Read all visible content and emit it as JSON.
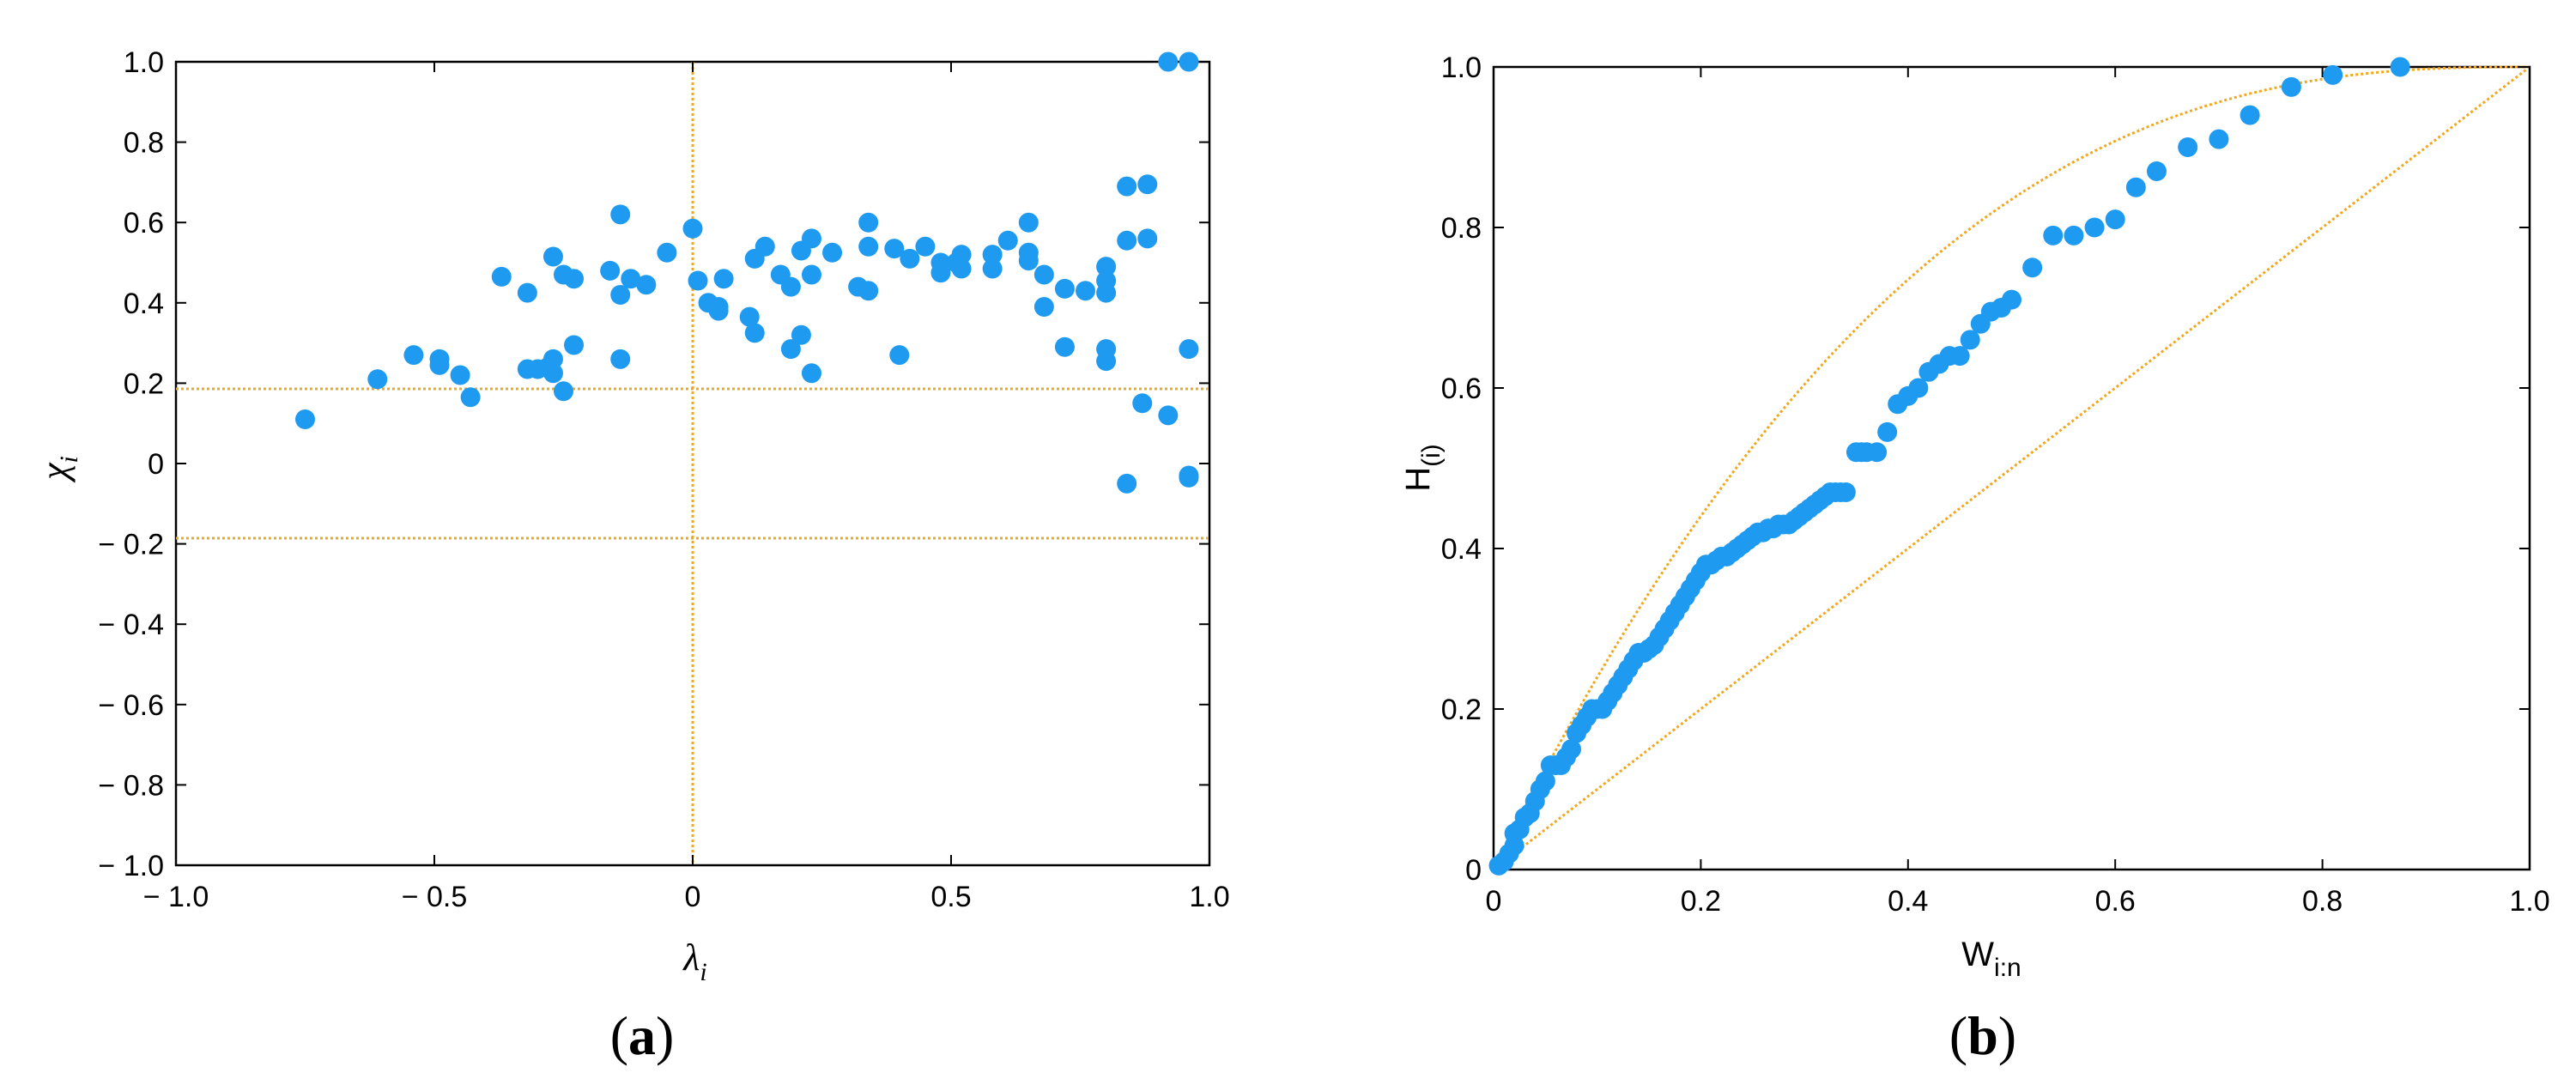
{
  "colors": {
    "points": "#1e9bf0",
    "reference": "#f0a81e",
    "axes": "#000000"
  },
  "chart_data": [
    {
      "type": "scatter",
      "panel_label": "a",
      "xlabel": "λ",
      "xlabel_sub": "i",
      "ylabel": "χ",
      "ylabel_sub": "i",
      "xlim": [
        -1.0,
        1.0
      ],
      "ylim": [
        -1.0,
        1.0
      ],
      "xticks": [
        -1.0,
        -0.5,
        0,
        0.5,
        1.0
      ],
      "xtick_labels": [
        "− 1.0",
        "− 0.5",
        "0",
        "0.5",
        "1.0"
      ],
      "yticks": [
        -1.0,
        -0.8,
        -0.6,
        -0.4,
        -0.2,
        0,
        0.2,
        0.4,
        0.6,
        0.8,
        1.0
      ],
      "ytick_labels": [
        "− 1.0",
        "− 0.8",
        "− 0.6",
        "− 0.4",
        "− 0.2",
        "0",
        "0.2",
        "0.4",
        "0.6",
        "0.8",
        "1.0"
      ],
      "grid": false,
      "reference_lines": {
        "vertical_x": [
          0
        ],
        "horizontal_y": [
          0.186,
          -0.186
        ]
      },
      "points": [
        [
          -0.75,
          0.11
        ],
        [
          -0.61,
          0.21
        ],
        [
          -0.54,
          0.27
        ],
        [
          -0.49,
          0.26
        ],
        [
          -0.49,
          0.245
        ],
        [
          -0.45,
          0.22
        ],
        [
          -0.43,
          0.165
        ],
        [
          -0.37,
          0.465
        ],
        [
          -0.32,
          0.425
        ],
        [
          -0.32,
          0.235
        ],
        [
          -0.3,
          0.235
        ],
        [
          -0.28,
          0.24
        ],
        [
          -0.27,
          0.515
        ],
        [
          -0.27,
          0.26
        ],
        [
          -0.27,
          0.225
        ],
        [
          -0.25,
          0.47
        ],
        [
          -0.25,
          0.18
        ],
        [
          -0.23,
          0.46
        ],
        [
          -0.23,
          0.295
        ],
        [
          -0.16,
          0.48
        ],
        [
          -0.14,
          0.62
        ],
        [
          -0.14,
          0.42
        ],
        [
          -0.14,
          0.26
        ],
        [
          -0.12,
          0.46
        ],
        [
          -0.09,
          0.445
        ],
        [
          -0.05,
          0.525
        ],
        [
          0.0,
          0.585
        ],
        [
          0.01,
          0.455
        ],
        [
          0.03,
          0.4
        ],
        [
          0.05,
          0.38
        ],
        [
          0.05,
          0.39
        ],
        [
          0.06,
          0.46
        ],
        [
          0.11,
          0.365
        ],
        [
          0.12,
          0.325
        ],
        [
          0.12,
          0.51
        ],
        [
          0.14,
          0.54
        ],
        [
          0.17,
          0.47
        ],
        [
          0.19,
          0.44
        ],
        [
          0.19,
          0.285
        ],
        [
          0.21,
          0.53
        ],
        [
          0.21,
          0.32
        ],
        [
          0.23,
          0.56
        ],
        [
          0.23,
          0.47
        ],
        [
          0.23,
          0.225
        ],
        [
          0.27,
          0.525
        ],
        [
          0.32,
          0.44
        ],
        [
          0.34,
          0.6
        ],
        [
          0.34,
          0.54
        ],
        [
          0.34,
          0.43
        ],
        [
          0.39,
          0.535
        ],
        [
          0.4,
          0.27
        ],
        [
          0.42,
          0.51
        ],
        [
          0.45,
          0.54
        ],
        [
          0.48,
          0.5
        ],
        [
          0.48,
          0.475
        ],
        [
          0.51,
          0.5
        ],
        [
          0.52,
          0.52
        ],
        [
          0.52,
          0.485
        ],
        [
          0.58,
          0.52
        ],
        [
          0.58,
          0.485
        ],
        [
          0.61,
          0.555
        ],
        [
          0.65,
          0.6
        ],
        [
          0.65,
          0.525
        ],
        [
          0.65,
          0.505
        ],
        [
          0.68,
          0.47
        ],
        [
          0.68,
          0.39
        ],
        [
          0.72,
          0.435
        ],
        [
          0.72,
          0.29
        ],
        [
          0.76,
          0.43
        ],
        [
          0.8,
          0.49
        ],
        [
          0.8,
          0.455
        ],
        [
          0.8,
          0.425
        ],
        [
          0.8,
          0.285
        ],
        [
          0.8,
          0.255
        ],
        [
          0.84,
          0.69
        ],
        [
          0.84,
          0.555
        ],
        [
          0.84,
          -0.05
        ],
        [
          0.87,
          0.15
        ],
        [
          0.88,
          0.695
        ],
        [
          0.88,
          0.56
        ],
        [
          0.92,
          1.0
        ],
        [
          0.92,
          0.12
        ],
        [
          0.96,
          1.0
        ],
        [
          0.96,
          0.285
        ],
        [
          0.96,
          -0.03
        ],
        [
          0.96,
          -0.035
        ]
      ]
    },
    {
      "type": "scatter",
      "panel_label": "b",
      "xlabel": "W",
      "xlabel_sub": "i:n",
      "ylabel": "H",
      "ylabel_sub": "(i)",
      "xlim": [
        0,
        1.0
      ],
      "ylim": [
        0,
        1.0
      ],
      "xticks": [
        0,
        0.2,
        0.4,
        0.6,
        0.8,
        1.0
      ],
      "xtick_labels": [
        "0",
        "0.2",
        "0.4",
        "0.6",
        "0.8",
        "1.0"
      ],
      "yticks": [
        0,
        0.2,
        0.4,
        0.6,
        0.8,
        1.0
      ],
      "ytick_labels": [
        "0",
        "0.2",
        "0.4",
        "0.6",
        "0.8",
        "1.0"
      ],
      "grid": false,
      "reference_curves": [
        "diagonal y = x",
        "upper envelope curve from (0,0) to (1,1)"
      ],
      "points": [
        [
          0.005,
          0.005
        ],
        [
          0.01,
          0.01
        ],
        [
          0.015,
          0.02
        ],
        [
          0.02,
          0.03
        ],
        [
          0.02,
          0.045
        ],
        [
          0.025,
          0.05
        ],
        [
          0.03,
          0.065
        ],
        [
          0.035,
          0.07
        ],
        [
          0.04,
          0.085
        ],
        [
          0.045,
          0.1
        ],
        [
          0.05,
          0.11
        ],
        [
          0.055,
          0.13
        ],
        [
          0.06,
          0.13
        ],
        [
          0.065,
          0.13
        ],
        [
          0.07,
          0.14
        ],
        [
          0.075,
          0.15
        ],
        [
          0.08,
          0.17
        ],
        [
          0.085,
          0.18
        ],
        [
          0.09,
          0.19
        ],
        [
          0.095,
          0.2
        ],
        [
          0.1,
          0.2
        ],
        [
          0.105,
          0.2
        ],
        [
          0.11,
          0.21
        ],
        [
          0.115,
          0.22
        ],
        [
          0.12,
          0.23
        ],
        [
          0.125,
          0.24
        ],
        [
          0.13,
          0.25
        ],
        [
          0.135,
          0.26
        ],
        [
          0.14,
          0.27
        ],
        [
          0.145,
          0.27
        ],
        [
          0.15,
          0.275
        ],
        [
          0.155,
          0.28
        ],
        [
          0.16,
          0.29
        ],
        [
          0.165,
          0.3
        ],
        [
          0.17,
          0.31
        ],
        [
          0.175,
          0.32
        ],
        [
          0.18,
          0.33
        ],
        [
          0.185,
          0.34
        ],
        [
          0.19,
          0.35
        ],
        [
          0.195,
          0.36
        ],
        [
          0.2,
          0.37
        ],
        [
          0.205,
          0.38
        ],
        [
          0.21,
          0.38
        ],
        [
          0.215,
          0.385
        ],
        [
          0.22,
          0.39
        ],
        [
          0.225,
          0.39
        ],
        [
          0.23,
          0.395
        ],
        [
          0.235,
          0.4
        ],
        [
          0.24,
          0.405
        ],
        [
          0.245,
          0.41
        ],
        [
          0.25,
          0.415
        ],
        [
          0.255,
          0.42
        ],
        [
          0.26,
          0.42
        ],
        [
          0.265,
          0.425
        ],
        [
          0.27,
          0.425
        ],
        [
          0.275,
          0.43
        ],
        [
          0.28,
          0.43
        ],
        [
          0.285,
          0.43
        ],
        [
          0.29,
          0.435
        ],
        [
          0.295,
          0.44
        ],
        [
          0.3,
          0.445
        ],
        [
          0.305,
          0.45
        ],
        [
          0.31,
          0.455
        ],
        [
          0.315,
          0.46
        ],
        [
          0.32,
          0.465
        ],
        [
          0.325,
          0.47
        ],
        [
          0.33,
          0.47
        ],
        [
          0.335,
          0.47
        ],
        [
          0.34,
          0.47
        ],
        [
          0.35,
          0.52
        ],
        [
          0.355,
          0.52
        ],
        [
          0.36,
          0.52
        ],
        [
          0.37,
          0.52
        ],
        [
          0.38,
          0.545
        ],
        [
          0.39,
          0.58
        ],
        [
          0.4,
          0.59
        ],
        [
          0.41,
          0.6
        ],
        [
          0.42,
          0.62
        ],
        [
          0.43,
          0.63
        ],
        [
          0.44,
          0.64
        ],
        [
          0.45,
          0.64
        ],
        [
          0.46,
          0.66
        ],
        [
          0.47,
          0.68
        ],
        [
          0.48,
          0.695
        ],
        [
          0.49,
          0.7
        ],
        [
          0.5,
          0.71
        ],
        [
          0.52,
          0.75
        ],
        [
          0.54,
          0.79
        ],
        [
          0.56,
          0.79
        ],
        [
          0.58,
          0.8
        ],
        [
          0.6,
          0.81
        ],
        [
          0.62,
          0.85
        ],
        [
          0.64,
          0.87
        ],
        [
          0.67,
          0.9
        ],
        [
          0.7,
          0.91
        ],
        [
          0.73,
          0.94
        ],
        [
          0.77,
          0.975
        ],
        [
          0.81,
          0.99
        ],
        [
          0.875,
          1.0
        ]
      ]
    }
  ]
}
